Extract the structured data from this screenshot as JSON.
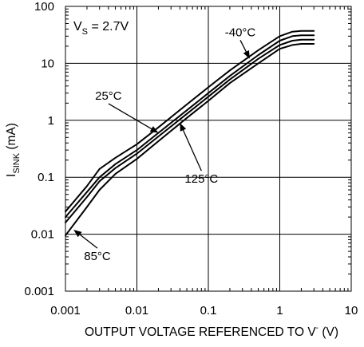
{
  "chart_data": {
    "type": "line",
    "x_scale": "log",
    "y_scale": "log",
    "xlim": [
      0.001,
      10
    ],
    "ylim": [
      0.001,
      100
    ],
    "x_ticks": [
      {
        "value": 0.001,
        "label": "0.001"
      },
      {
        "value": 0.01,
        "label": "0.01"
      },
      {
        "value": 0.1,
        "label": "0.1"
      },
      {
        "value": 1,
        "label": "1"
      },
      {
        "value": 10,
        "label": "10"
      }
    ],
    "y_ticks": [
      {
        "value": 100,
        "label": "100"
      },
      {
        "value": 10,
        "label": "10"
      },
      {
        "value": 1,
        "label": "1"
      },
      {
        "value": 0.1,
        "label": "0.1"
      },
      {
        "value": 0.01,
        "label": "0.01"
      },
      {
        "value": 0.001,
        "label": "0.001"
      }
    ],
    "grid": true,
    "xlabel": {
      "main": "OUTPUT VOLTAGE REFERENCED TO V",
      "sup": "-",
      "tail": " (V)"
    },
    "ylabel": {
      "main": "I",
      "sub": "SINK",
      "tail": " (mA)"
    },
    "condition": {
      "main": "V",
      "sub": "S",
      "tail": " = 2.7V"
    },
    "series": [
      {
        "name": "-40°C",
        "points": [
          [
            0.001,
            0.025
          ],
          [
            0.002,
            0.07
          ],
          [
            0.003,
            0.14
          ],
          [
            0.005,
            0.22
          ],
          [
            0.01,
            0.38
          ],
          [
            0.02,
            0.75
          ],
          [
            0.05,
            1.9
          ],
          [
            0.1,
            3.8
          ],
          [
            0.2,
            7.5
          ],
          [
            0.5,
            17
          ],
          [
            1,
            30
          ],
          [
            1.5,
            36
          ],
          [
            2,
            37
          ],
          [
            3,
            37
          ]
        ]
      },
      {
        "name": "25°C",
        "points": [
          [
            0.001,
            0.02
          ],
          [
            0.002,
            0.055
          ],
          [
            0.003,
            0.1
          ],
          [
            0.005,
            0.17
          ],
          [
            0.01,
            0.3
          ],
          [
            0.02,
            0.6
          ],
          [
            0.05,
            1.5
          ],
          [
            0.1,
            3.0
          ],
          [
            0.2,
            6.0
          ],
          [
            0.5,
            14
          ],
          [
            1,
            25
          ],
          [
            1.5,
            30
          ],
          [
            2,
            31
          ],
          [
            3,
            31
          ]
        ]
      },
      {
        "name": "125°C",
        "points": [
          [
            0.001,
            0.016
          ],
          [
            0.002,
            0.045
          ],
          [
            0.003,
            0.085
          ],
          [
            0.005,
            0.145
          ],
          [
            0.01,
            0.26
          ],
          [
            0.02,
            0.52
          ],
          [
            0.05,
            1.3
          ],
          [
            0.1,
            2.6
          ],
          [
            0.2,
            5.2
          ],
          [
            0.5,
            12
          ],
          [
            1,
            21
          ],
          [
            1.5,
            25
          ],
          [
            2,
            26
          ],
          [
            3,
            26
          ]
        ]
      },
      {
        "name": "85°C",
        "points": [
          [
            0.001,
            0.0095
          ],
          [
            0.002,
            0.03
          ],
          [
            0.003,
            0.06
          ],
          [
            0.005,
            0.115
          ],
          [
            0.01,
            0.21
          ],
          [
            0.02,
            0.43
          ],
          [
            0.05,
            1.1
          ],
          [
            0.1,
            2.2
          ],
          [
            0.2,
            4.5
          ],
          [
            0.5,
            10
          ],
          [
            1,
            18
          ],
          [
            1.5,
            21
          ],
          [
            2,
            22
          ],
          [
            3,
            22
          ]
        ]
      }
    ],
    "annotations": [
      {
        "text": "-40°C",
        "series": "-40°C",
        "label_xy": [
          0.28,
          30
        ],
        "arrow_to": [
          0.38,
          12
        ]
      },
      {
        "text": "25°C",
        "series": "25°C",
        "label_xy": [
          0.004,
          2.3
        ],
        "arrow_to": [
          0.02,
          0.6
        ]
      },
      {
        "text": "125°C",
        "series": "125°C",
        "label_xy": [
          0.08,
          0.08
        ],
        "arrow_to": [
          0.04,
          0.9
        ]
      },
      {
        "text": "85°C",
        "series": "85°C",
        "label_xy": [
          0.0028,
          0.0035
        ],
        "arrow_to": [
          0.0013,
          0.012
        ]
      }
    ]
  }
}
